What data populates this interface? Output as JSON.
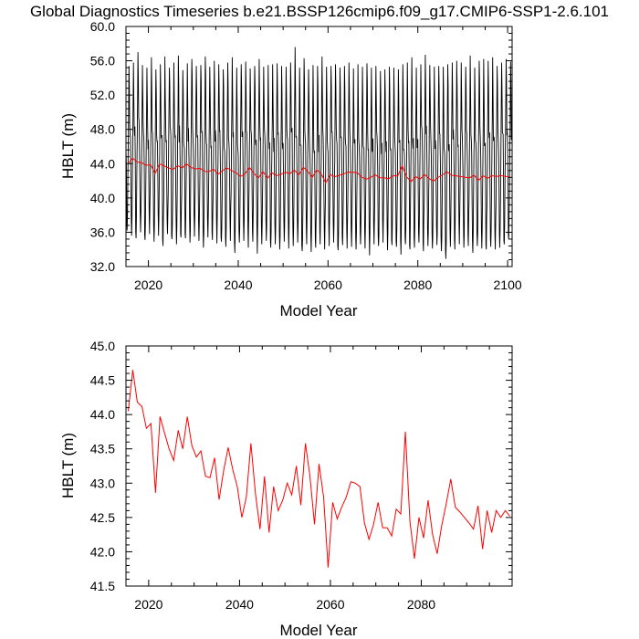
{
  "figure": {
    "title": "Global Diagnostics Timeseries b.e21.BSSP126cmip6.f09_g17.CMIP6-SSP1-2.6.101"
  },
  "colors": {
    "monthly_line": "#000000",
    "annual_line": "#ff0000",
    "axes": "#000000"
  },
  "chart_data": [
    {
      "type": "line",
      "title": "",
      "xlabel": "Model Year",
      "ylabel": "HBLT (m)",
      "xlim": [
        2015,
        2101
      ],
      "ylim": [
        32.0,
        60.0
      ],
      "x_ticks": [
        2020,
        2040,
        2060,
        2080,
        2100
      ],
      "y_ticks": [
        "32.0",
        "36.0",
        "40.0",
        "44.0",
        "48.0",
        "52.0",
        "56.0",
        "60.0"
      ],
      "grid": false,
      "series": [
        {
          "color": "#000000",
          "description_of_values": "monthly values: x in years, yearly max near 55.5–57.5 m and min near 33.5–37 m",
          "x_start": 2015.0,
          "x_step": 0.0833333,
          "yearly_maxima": [
            55.4,
            55.8,
            57.0,
            55.5,
            55.2,
            56.4,
            55.0,
            55.6,
            56.5,
            55.2,
            55.8,
            56.6,
            54.9,
            55.7,
            56.2,
            55.4,
            55.5,
            56.5,
            55.3,
            56.0,
            55.6,
            55.0,
            55.8,
            56.4,
            55.2,
            55.6,
            55.9,
            55.1,
            55.4,
            56.2,
            55.3,
            55.5,
            55.6,
            55.7,
            55.4,
            55.3,
            55.8,
            57.6,
            55.2,
            56.3,
            55.0,
            55.5,
            55.4,
            56.5,
            55.3,
            55.4,
            55.6,
            55.2,
            55.4,
            55.8,
            55.1,
            55.6,
            55.3,
            55.7,
            55.2,
            55.4,
            54.8,
            55.0,
            55.3,
            55.2,
            55.0,
            55.6,
            55.8,
            56.4,
            55.2,
            55.6,
            56.7,
            55.5,
            55.3,
            55.4,
            55.3,
            55.6,
            55.8,
            56.0,
            55.8,
            55.3,
            56.6,
            55.2,
            56.0,
            56.2,
            56.0,
            56.4,
            55.4,
            55.8,
            56.2,
            55.9
          ],
          "yearly_minima": [
            36.2,
            35.6,
            35.3,
            36.0,
            35.1,
            35.8,
            34.9,
            35.6,
            34.4,
            35.8,
            35.2,
            34.6,
            35.4,
            35.3,
            34.8,
            35.5,
            35.0,
            34.2,
            35.4,
            35.1,
            34.7,
            34.9,
            34.3,
            35.0,
            33.6,
            34.8,
            35.0,
            34.2,
            34.9,
            33.5,
            34.6,
            35.0,
            34.2,
            34.6,
            34.0,
            34.9,
            34.1,
            34.4,
            34.8,
            33.8,
            34.6,
            33.7,
            34.2,
            34.6,
            34.0,
            34.4,
            34.8,
            33.9,
            34.5,
            34.1,
            34.3,
            34.0,
            34.6,
            34.1,
            33.3,
            34.6,
            34.4,
            34.8,
            33.9,
            34.5,
            34.3,
            33.4,
            34.6,
            34.0,
            34.2,
            34.8,
            33.8,
            34.4,
            34.1,
            34.5,
            33.8,
            32.9,
            34.3,
            34.0,
            34.6,
            34.2,
            34.4,
            33.6,
            34.4,
            34.1,
            34.0,
            34.3,
            34.0,
            34.2,
            34.6,
            35.2
          ]
        },
        {
          "color": "#ff0000",
          "description_of_values": "annual means, x = year",
          "x": [
            2015,
            2016,
            2017,
            2018,
            2019,
            2020,
            2021,
            2022,
            2023,
            2024,
            2025,
            2026,
            2027,
            2028,
            2029,
            2030,
            2031,
            2032,
            2033,
            2034,
            2035,
            2036,
            2037,
            2038,
            2039,
            2040,
            2041,
            2042,
            2043,
            2044,
            2045,
            2046,
            2047,
            2048,
            2049,
            2050,
            2051,
            2052,
            2053,
            2054,
            2055,
            2056,
            2057,
            2058,
            2059,
            2060,
            2061,
            2062,
            2063,
            2064,
            2065,
            2066,
            2067,
            2068,
            2069,
            2070,
            2071,
            2072,
            2073,
            2074,
            2075,
            2076,
            2077,
            2078,
            2079,
            2080,
            2081,
            2082,
            2083,
            2084,
            2085,
            2086,
            2087,
            2088,
            2089,
            2090,
            2091,
            2092,
            2093,
            2094,
            2095,
            2096,
            2097,
            2098,
            2099,
            2100
          ],
          "y": [
            44.05,
            44.65,
            44.18,
            44.12,
            43.8,
            43.87,
            42.86,
            43.97,
            43.73,
            43.5,
            43.33,
            43.77,
            43.5,
            43.97,
            43.55,
            43.38,
            43.47,
            43.1,
            43.08,
            43.37,
            42.76,
            43.18,
            43.52,
            43.2,
            42.95,
            42.5,
            42.8,
            43.58,
            42.85,
            42.33,
            43.1,
            42.28,
            42.95,
            42.6,
            42.75,
            43.0,
            42.83,
            43.25,
            42.68,
            43.58,
            43.1,
            42.4,
            43.28,
            42.8,
            41.77,
            42.72,
            42.48,
            42.65,
            42.8,
            43.02,
            43.0,
            42.95,
            42.42,
            42.18,
            42.4,
            42.72,
            42.35,
            42.35,
            42.23,
            42.62,
            42.55,
            43.75,
            42.45,
            41.9,
            42.5,
            42.2,
            42.75,
            42.25,
            41.97,
            42.38,
            42.7,
            43.06,
            42.65,
            42.58,
            42.5,
            42.42,
            42.33,
            42.67,
            42.04,
            42.6,
            42.28,
            42.6,
            42.5,
            42.6,
            42.52,
            42.42
          ]
        }
      ]
    },
    {
      "type": "line",
      "title": "",
      "xlabel": "Model Year",
      "ylabel": "HBLT (m)",
      "xlim": [
        2015,
        2100
      ],
      "ylim": [
        41.5,
        45.0
      ],
      "x_ticks": [
        2020,
        2040,
        2060,
        2080
      ],
      "y_ticks": [
        "41.5",
        "42.0",
        "42.5",
        "43.0",
        "43.5",
        "44.0",
        "44.5",
        "45.0"
      ],
      "grid": false,
      "series": [
        {
          "color": "#ff0000",
          "description_of_values": "annual means, same as the red series in the top panel",
          "x": [
            2015,
            2016,
            2017,
            2018,
            2019,
            2020,
            2021,
            2022,
            2023,
            2024,
            2025,
            2026,
            2027,
            2028,
            2029,
            2030,
            2031,
            2032,
            2033,
            2034,
            2035,
            2036,
            2037,
            2038,
            2039,
            2040,
            2041,
            2042,
            2043,
            2044,
            2045,
            2046,
            2047,
            2048,
            2049,
            2050,
            2051,
            2052,
            2053,
            2054,
            2055,
            2056,
            2057,
            2058,
            2059,
            2060,
            2061,
            2062,
            2063,
            2064,
            2065,
            2066,
            2067,
            2068,
            2069,
            2070,
            2071,
            2072,
            2073,
            2074,
            2075,
            2076,
            2077,
            2078,
            2079,
            2080,
            2081,
            2082,
            2083,
            2084,
            2085,
            2086,
            2087,
            2088,
            2089,
            2090,
            2091,
            2092,
            2093,
            2094,
            2095,
            2096,
            2097,
            2098,
            2099,
            2100
          ],
          "y": [
            44.05,
            44.65,
            44.18,
            44.12,
            43.8,
            43.87,
            42.86,
            43.97,
            43.73,
            43.5,
            43.33,
            43.77,
            43.5,
            43.97,
            43.55,
            43.38,
            43.47,
            43.1,
            43.08,
            43.37,
            42.76,
            43.18,
            43.52,
            43.2,
            42.95,
            42.5,
            42.8,
            43.58,
            42.85,
            42.33,
            43.1,
            42.28,
            42.95,
            42.6,
            42.75,
            43.0,
            42.83,
            43.25,
            42.68,
            43.58,
            43.1,
            42.4,
            43.28,
            42.8,
            41.77,
            42.72,
            42.48,
            42.65,
            42.8,
            43.02,
            43.0,
            42.95,
            42.42,
            42.18,
            42.4,
            42.72,
            42.35,
            42.35,
            42.23,
            42.62,
            42.55,
            43.75,
            42.45,
            41.9,
            42.5,
            42.2,
            42.75,
            42.25,
            41.97,
            42.38,
            42.7,
            43.06,
            42.65,
            42.58,
            42.5,
            42.42,
            42.33,
            42.67,
            42.04,
            42.6,
            42.28,
            42.6,
            42.5,
            42.6,
            42.52,
            42.42
          ]
        }
      ]
    }
  ]
}
